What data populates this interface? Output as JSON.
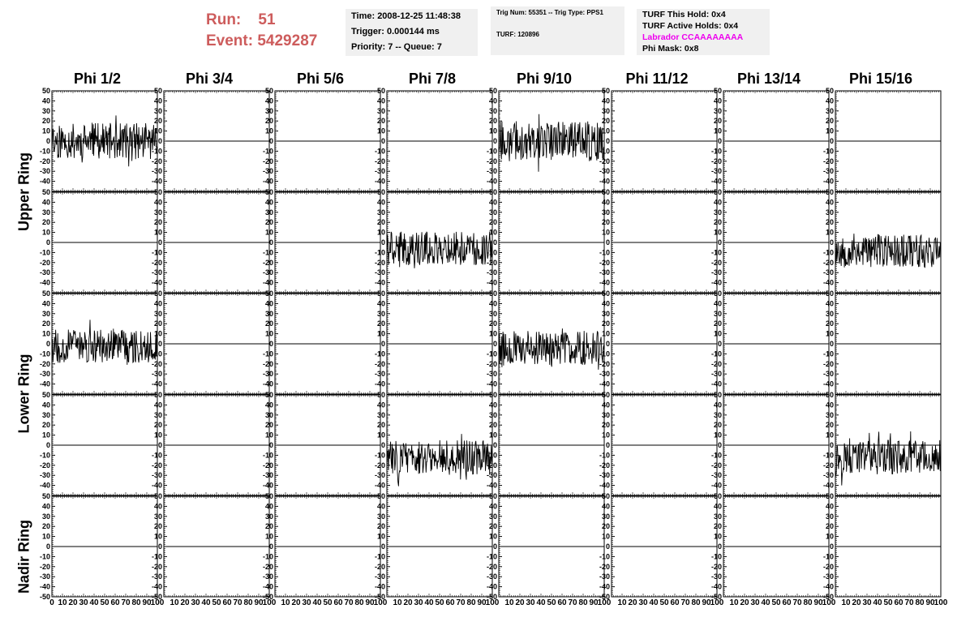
{
  "header": {
    "run_label": "Run:",
    "run_value": "51",
    "event_label": "Event:",
    "event_value": "5429287",
    "box1": {
      "time": "Time: 2008-12-25 11:48:38",
      "trigger": "Trigger: 0.000144 ms",
      "priority": "Priority: 7 -- Queue: 7"
    },
    "box2": {
      "trig": "Trig Num: 55351 -- Trig Type: PPS1",
      "turf": "TURF: 120896"
    },
    "box3": {
      "hold": "TURF This Hold: 0x4",
      "active": "TURF Active Holds: 0x4",
      "labrador": "Labrador CCAAAAAAAA",
      "phimask": "Phi Mask: 0x8"
    }
  },
  "colors": {
    "run_text": "#cd5c5c",
    "labrador_text": "#ee00ee",
    "box_bg": "#f0f0f0",
    "trace": "#000000"
  },
  "chart_data": {
    "type": "line",
    "columns": [
      "Phi 1/2",
      "Phi 3/4",
      "Phi 5/6",
      "Phi 7/8",
      "Phi 9/10",
      "Phi 11/12",
      "Phi 13/14",
      "Phi 15/16"
    ],
    "ring_labels": [
      "Upper Ring",
      "Lower Ring",
      "Nadir Ring"
    ],
    "rows": 5,
    "ylim": [
      -50,
      50
    ],
    "xlim": [
      0,
      100
    ],
    "y_ticks": [
      50,
      40,
      30,
      20,
      10,
      0,
      -10,
      -20,
      -30,
      -40,
      -50
    ],
    "x_ticks": [
      0,
      10,
      20,
      30,
      40,
      50,
      60,
      70,
      80,
      90,
      100
    ],
    "grid": false,
    "panels": [
      {
        "row": 0,
        "col": 0,
        "mean": 0,
        "amp": 18,
        "seed": 11
      },
      {
        "row": 0,
        "col": 4,
        "mean": 0,
        "amp": 20,
        "seed": 27
      },
      {
        "row": 1,
        "col": 3,
        "mean": -6,
        "amp": 17,
        "seed": 41
      },
      {
        "row": 1,
        "col": 7,
        "mean": -8,
        "amp": 17,
        "seed": 53
      },
      {
        "row": 2,
        "col": 0,
        "mean": -2,
        "amp": 17,
        "seed": 67
      },
      {
        "row": 2,
        "col": 4,
        "mean": -4,
        "amp": 17,
        "seed": 79
      },
      {
        "row": 3,
        "col": 3,
        "mean": -12,
        "amp": 17,
        "seed": 83
      },
      {
        "row": 3,
        "col": 7,
        "mean": -12,
        "amp": 17,
        "seed": 97
      }
    ]
  }
}
